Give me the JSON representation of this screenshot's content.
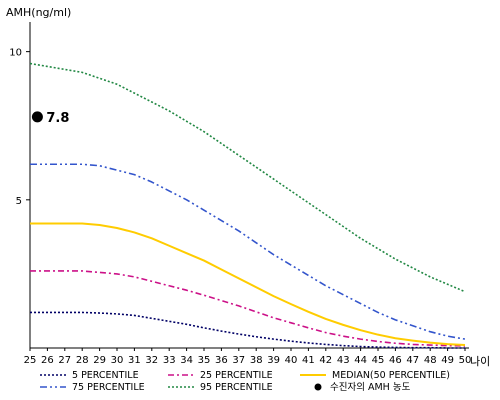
{
  "chart_data": {
    "type": "line",
    "ylabel": "AMH(ng/ml)",
    "xlabel": "나이",
    "x": [
      25,
      26,
      27,
      28,
      29,
      30,
      31,
      32,
      33,
      34,
      35,
      36,
      37,
      38,
      39,
      40,
      41,
      42,
      43,
      44,
      45,
      46,
      47,
      48,
      49,
      50
    ],
    "xlim": [
      25,
      50
    ],
    "ylim": [
      0,
      11
    ],
    "yticks": [
      5,
      10
    ],
    "series": [
      {
        "name": "5 PERCENTILE",
        "color": "#000066",
        "dash": "dot",
        "values": [
          1.2,
          1.2,
          1.2,
          1.2,
          1.18,
          1.15,
          1.1,
          1.0,
          0.9,
          0.8,
          0.68,
          0.57,
          0.47,
          0.38,
          0.3,
          0.23,
          0.17,
          0.12,
          0.08,
          0.05,
          0.03,
          0.02,
          0.01,
          0.01,
          0.0,
          0.0
        ]
      },
      {
        "name": "75 PERCENTILE",
        "color": "#3355cc",
        "dash": "dashdotdot",
        "values": [
          6.2,
          6.2,
          6.2,
          6.2,
          6.15,
          6.0,
          5.85,
          5.6,
          5.3,
          5.0,
          4.65,
          4.3,
          3.95,
          3.55,
          3.15,
          2.8,
          2.45,
          2.1,
          1.8,
          1.5,
          1.2,
          0.95,
          0.75,
          0.55,
          0.4,
          0.3
        ]
      },
      {
        "name": "25 PERCENTILE",
        "color": "#cc1188",
        "dash": "dashdot",
        "values": [
          2.6,
          2.6,
          2.6,
          2.6,
          2.55,
          2.5,
          2.4,
          2.25,
          2.1,
          1.95,
          1.78,
          1.6,
          1.42,
          1.22,
          1.02,
          0.85,
          0.68,
          0.52,
          0.4,
          0.3,
          0.22,
          0.16,
          0.12,
          0.1,
          0.08,
          0.07
        ]
      },
      {
        "name": "95 PERCENTILE",
        "color": "#228844",
        "dash": "dot",
        "values": [
          9.6,
          9.5,
          9.4,
          9.3,
          9.1,
          8.9,
          8.6,
          8.3,
          8.0,
          7.65,
          7.3,
          6.9,
          6.5,
          6.1,
          5.7,
          5.3,
          4.9,
          4.5,
          4.1,
          3.7,
          3.35,
          3.0,
          2.7,
          2.4,
          2.15,
          1.9
        ]
      },
      {
        "name": "MEDIAN(50 PERCENTILE)",
        "color": "#ffcc00",
        "dash": "solid",
        "values": [
          4.2,
          4.2,
          4.2,
          4.2,
          4.15,
          4.05,
          3.9,
          3.7,
          3.45,
          3.2,
          2.95,
          2.65,
          2.35,
          2.05,
          1.75,
          1.48,
          1.22,
          0.98,
          0.78,
          0.6,
          0.45,
          0.33,
          0.25,
          0.18,
          0.13,
          0.1
        ]
      }
    ],
    "patient_point": {
      "name": "수진자의 AMH 농도",
      "x": 26,
      "y": 7.8,
      "label": "7.8",
      "color": "#000000"
    },
    "legend_placement": "bottom",
    "grid": false
  }
}
